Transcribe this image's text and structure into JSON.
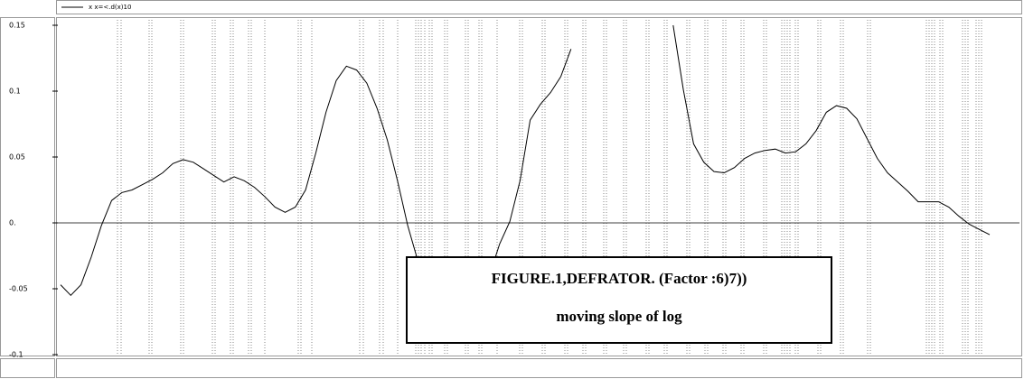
{
  "chart_data": {
    "type": "line",
    "legend_label": "x x=<.d(x)10",
    "annotation": {
      "title": "FIGURE.1,DEFRATOR. (Factor :6)7))",
      "subtitle": "moving slope of log"
    },
    "categories": [
      null,
      null,
      null,
      null,
      null,
      null,
      null,
      null,
      null,
      null,
      null,
      null,
      null,
      null,
      null,
      null,
      null,
      null,
      null,
      null,
      null,
      null,
      null,
      null,
      null,
      null,
      null,
      null,
      null,
      null,
      null,
      null,
      null,
      null,
      null,
      null,
      null,
      null,
      null,
      null,
      null,
      null,
      null,
      null,
      null,
      null,
      null,
      null,
      null,
      null,
      null,
      null,
      null,
      null,
      null,
      null,
      null,
      null,
      null,
      null,
      null,
      null,
      null,
      null,
      null,
      null,
      null,
      null,
      null,
      null,
      null,
      null,
      null,
      null,
      null,
      null,
      null,
      null,
      null,
      null,
      null,
      null,
      null,
      null,
      null,
      null,
      null,
      null,
      null,
      null,
      null,
      null
    ],
    "series": [
      {
        "name": "x x=<.d(x)10",
        "color": "#000000",
        "values": [
          -0.047,
          -0.055,
          -0.047,
          -0.026,
          -0.002,
          0.017,
          0.023,
          0.025,
          0.029,
          0.033,
          0.038,
          0.045,
          0.048,
          0.046,
          0.041,
          0.036,
          0.031,
          0.035,
          0.032,
          0.027,
          0.02,
          0.012,
          0.008,
          0.012,
          0.025,
          0.053,
          0.084,
          0.108,
          0.119,
          0.116,
          0.106,
          0.087,
          0.063,
          0.032,
          -0.002,
          -0.029,
          -0.034,
          -0.038,
          -0.04,
          -0.05,
          -0.057,
          -0.055,
          -0.04,
          -0.016,
          0.001,
          0.032,
          0.078,
          0.09,
          0.099,
          0.111,
          0.132,
          null,
          null,
          null,
          null,
          null,
          null,
          null,
          null,
          null,
          0.15,
          0.101,
          0.06,
          0.046,
          0.039,
          0.038,
          0.042,
          0.049,
          0.053,
          0.055,
          0.056,
          0.053,
          0.054,
          0.06,
          0.07,
          0.084,
          0.089,
          0.087,
          0.079,
          0.064,
          0.049,
          0.038,
          0.031,
          0.024,
          0.016,
          0.016,
          0.016,
          0.012,
          0.005,
          -0.001,
          -0.005,
          -0.009
        ]
      }
    ],
    "ylim": [
      -0.1,
      0.15
    ],
    "yticks": [
      -0.1,
      -0.05,
      {
        "value": 0,
        "label": "0."
      },
      0.05,
      0.1,
      0.15
    ],
    "zero_line": true
  }
}
